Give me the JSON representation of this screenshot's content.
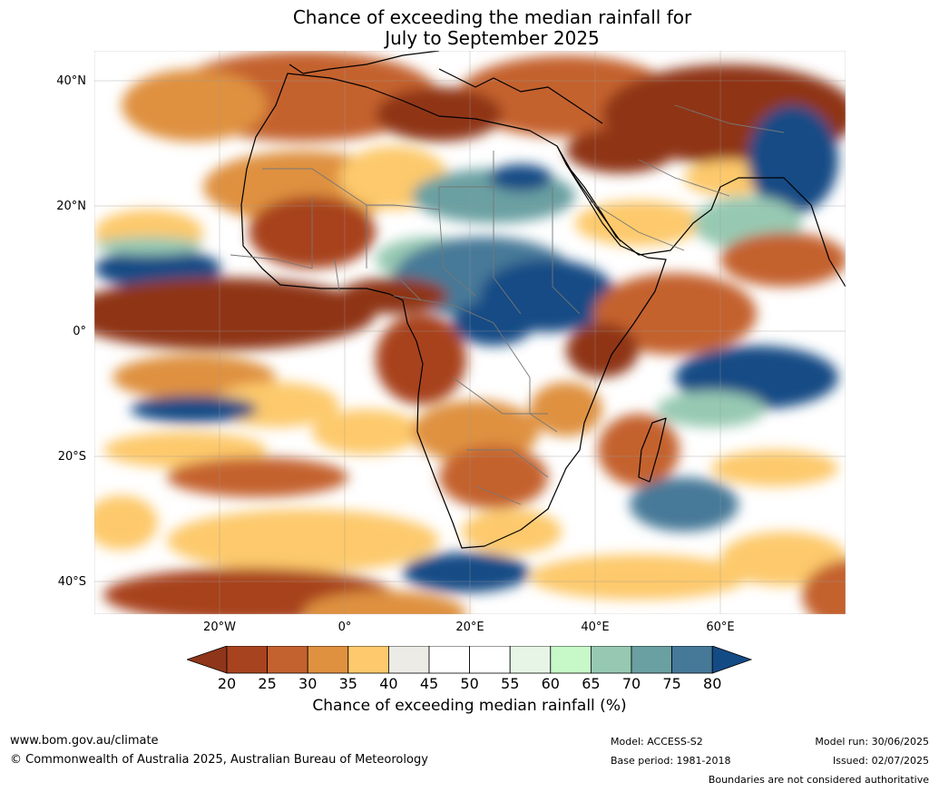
{
  "title": {
    "line1": "Chance of exceeding the median rainfall for",
    "line2": "July to September 2025"
  },
  "map": {
    "region": "Africa",
    "lat_labels": [
      "40°N",
      "20°N",
      "0°",
      "20°S",
      "40°S"
    ],
    "lon_labels": [
      "20°W",
      "0°",
      "20°E",
      "40°E",
      "60°E"
    ]
  },
  "colorbar": {
    "title": "Chance of exceeding median rainfall (%)",
    "ticks": [
      "20",
      "25",
      "30",
      "35",
      "40",
      "45",
      "50",
      "55",
      "60",
      "65",
      "70",
      "75",
      "80"
    ],
    "colors": [
      "#8f3519",
      "#a8431f",
      "#c4622f",
      "#df9140",
      "#fdc96c",
      "#ecebe6",
      "#ffffff",
      "#ffffff",
      "#e7f5e7",
      "#c7f9c8",
      "#97c9b2",
      "#6ba0a2",
      "#467998",
      "#134b85"
    ]
  },
  "footer": {
    "url": "www.bom.gov.au/climate",
    "copyright": "© Commonwealth of Australia 2025, Australian Bureau of Meteorology",
    "model": "Model: ACCESS-S2",
    "base_period": "Base period: 1981-2018",
    "model_run": "Model run: 30/06/2025",
    "issued": "Issued: 02/07/2025",
    "disclaimer": "Boundaries are not considered authoritative"
  }
}
